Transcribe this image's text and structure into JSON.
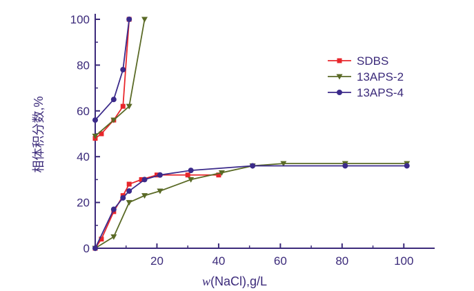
{
  "chart_data": {
    "type": "line",
    "xlabel_italic": "w",
    "xlabel_rest": "(NaCl),g/L",
    "ylabel": "相体积分数,%",
    "xlim": [
      0,
      110
    ],
    "ylim": [
      0,
      100
    ],
    "xticks": [
      20,
      40,
      60,
      80,
      100
    ],
    "yticks": [
      0,
      20,
      40,
      60,
      80,
      100
    ],
    "grid": false,
    "legend_position": "top-right",
    "series": [
      {
        "name": "SDBS",
        "color": "#e8262b",
        "marker": "square",
        "segments": [
          [
            [
              0,
              48
            ],
            [
              2,
              50
            ],
            [
              6,
              56
            ],
            [
              9,
              62
            ],
            [
              11,
              100
            ]
          ],
          [
            [
              0,
              0
            ],
            [
              2,
              4
            ],
            [
              6,
              16
            ],
            [
              9,
              23
            ],
            [
              11,
              28
            ],
            [
              15,
              30
            ],
            [
              20,
              32
            ],
            [
              30,
              32
            ],
            [
              40,
              32
            ]
          ]
        ]
      },
      {
        "name": "13APS-2",
        "color": "#5a6a26",
        "marker": "triangle-down",
        "segments": [
          [
            [
              0,
              49
            ],
            [
              6,
              56
            ],
            [
              11,
              62
            ],
            [
              16,
              100
            ]
          ],
          [
            [
              0,
              0
            ],
            [
              6,
              5
            ],
            [
              11,
              20
            ],
            [
              16,
              23
            ],
            [
              21,
              25
            ],
            [
              31,
              30
            ],
            [
              41,
              33
            ],
            [
              51,
              36
            ],
            [
              61,
              37
            ],
            [
              81,
              37
            ],
            [
              101,
              37
            ]
          ]
        ]
      },
      {
        "name": "13APS-4",
        "color": "#3b2a8a",
        "marker": "circle",
        "segments": [
          [
            [
              0,
              56
            ],
            [
              6,
              65
            ],
            [
              9,
              78
            ],
            [
              11,
              100
            ]
          ],
          [
            [
              0,
              0
            ],
            [
              6,
              17
            ],
            [
              9,
              22
            ],
            [
              11,
              25
            ],
            [
              16,
              30
            ],
            [
              21,
              32
            ],
            [
              31,
              34
            ],
            [
              51,
              36
            ],
            [
              81,
              36
            ],
            [
              101,
              36
            ]
          ]
        ]
      }
    ]
  }
}
